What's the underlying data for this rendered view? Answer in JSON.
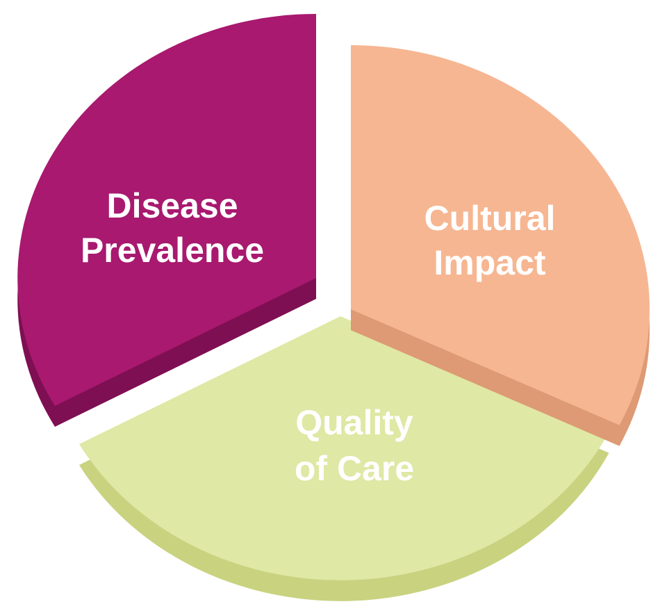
{
  "segments": [
    {
      "label_lines": [
        "Disease",
        "Prevalence"
      ]
    },
    {
      "label_lines": [
        "Cultural",
        "Impact"
      ]
    },
    {
      "label_lines": [
        "Quality",
        "of Care"
      ]
    }
  ]
}
